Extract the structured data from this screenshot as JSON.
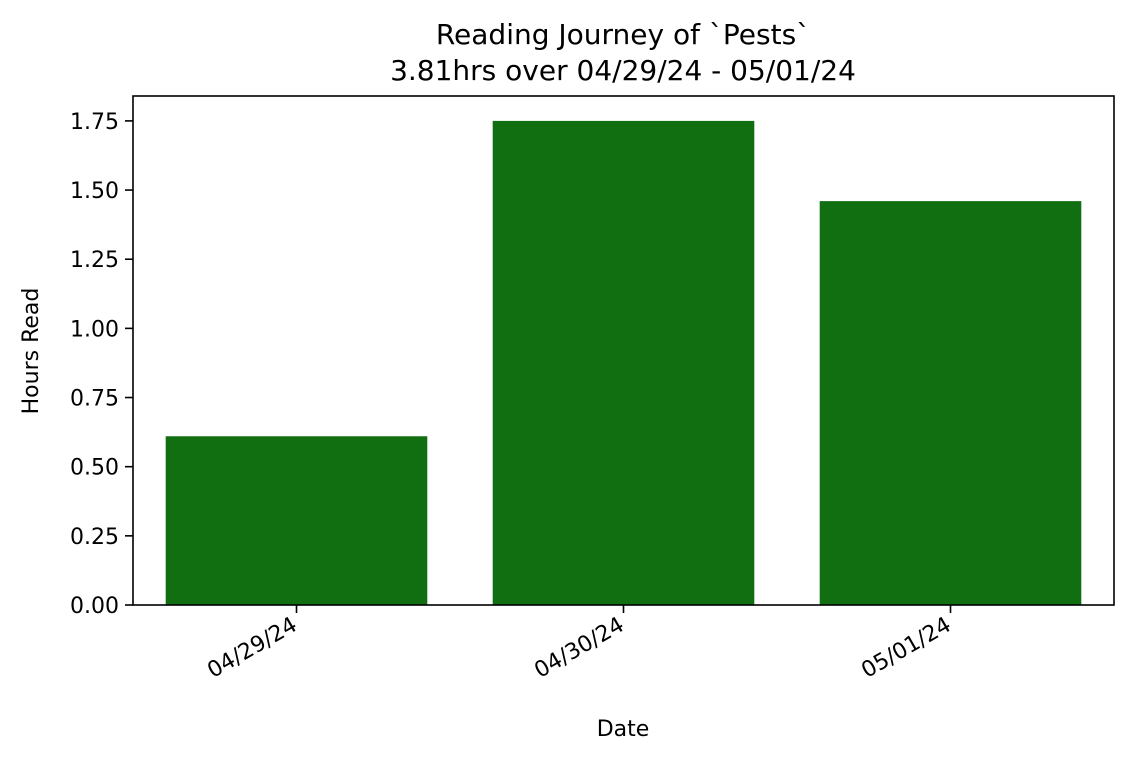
{
  "chart_data": {
    "type": "bar",
    "title": "Reading Journey of `Pests`",
    "subtitle": "3.81hrs over 04/29/24 - 05/01/24",
    "xlabel": "Date",
    "ylabel": "Hours Read",
    "categories": [
      "04/29/24",
      "04/30/24",
      "05/01/24"
    ],
    "values": [
      0.61,
      1.75,
      1.46
    ],
    "ylim": [
      0,
      1.84
    ],
    "yticks": [
      0.0,
      0.25,
      0.5,
      0.75,
      1.0,
      1.25,
      1.5,
      1.75
    ],
    "ytick_labels": [
      "0.00",
      "0.25",
      "0.50",
      "0.75",
      "1.00",
      "1.25",
      "1.50",
      "1.75"
    ],
    "grid": false,
    "bar_color": "#116e11"
  }
}
